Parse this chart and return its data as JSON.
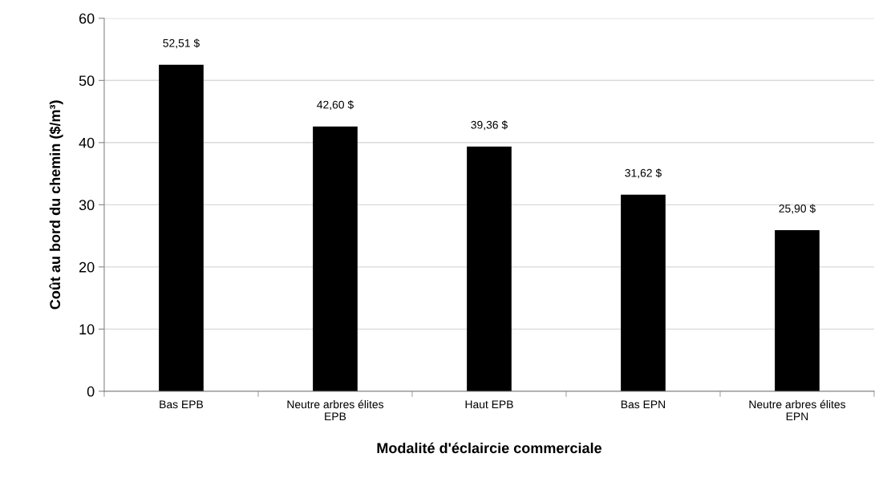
{
  "chart_data": {
    "type": "bar",
    "xlabel": "Modalité d'éclaircie commerciale",
    "ylabel": "Coût au bord du chemin ($/m³)",
    "categories": [
      "Bas EPB",
      "Neutre arbres élites\nEPB",
      "Haut EPB",
      "Bas EPN",
      "Neutre arbres élites\nEPN"
    ],
    "values": [
      52.51,
      42.6,
      39.36,
      31.62,
      25.9
    ],
    "value_labels": [
      "52,51 $",
      "42,60 $",
      "39,36 $",
      "31,62 $",
      "25,90 $"
    ],
    "color": "#000000",
    "ylim": [
      0,
      60
    ],
    "yticks": [
      0,
      10,
      20,
      30,
      40,
      50,
      60
    ],
    "grid": "y"
  }
}
